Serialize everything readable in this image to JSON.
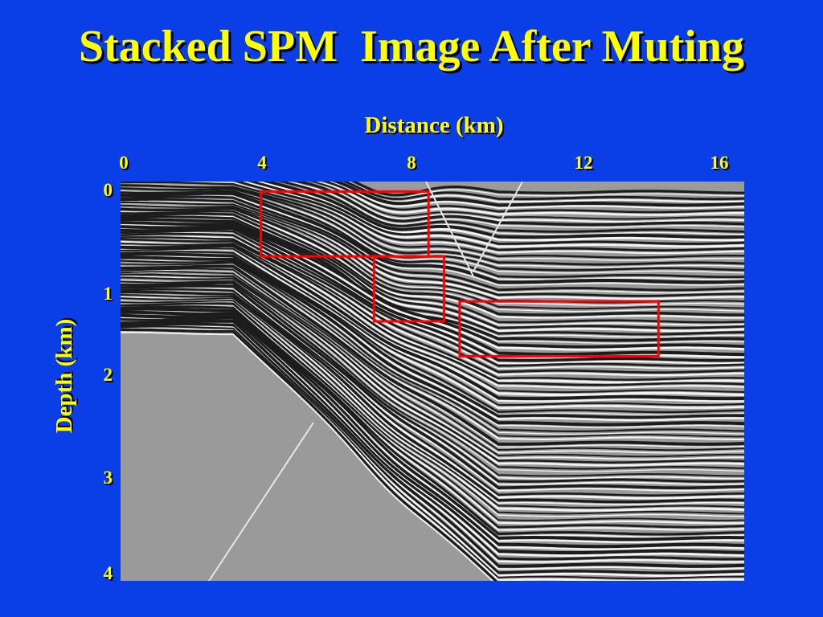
{
  "slide": {
    "title": "Stacked SPM  Image After Muting"
  },
  "chart_data": {
    "type": "heatmap",
    "title": "",
    "xlabel": "Distance (km)",
    "ylabel": "Depth (km)",
    "x_ticks": [
      "0",
      "4",
      "8",
      "12",
      "16"
    ],
    "y_ticks": [
      "0",
      "1",
      "2",
      "3",
      "4"
    ],
    "xlim": [
      0,
      16
    ],
    "ylim": [
      0,
      4
    ],
    "y_inverted": true,
    "image_description_colormap": "grayscale seismic reflectivity",
    "highlight_boxes": [
      {
        "x": [
          3.6,
          7.9
        ],
        "y": [
          0.1,
          0.75
        ],
        "color": "#ff0000"
      },
      {
        "x": [
          6.5,
          8.3
        ],
        "y": [
          0.75,
          1.4
        ],
        "color": "#ff0000"
      },
      {
        "x": [
          8.7,
          13.8
        ],
        "y": [
          1.2,
          1.75
        ],
        "color": "#ff0000"
      }
    ]
  }
}
